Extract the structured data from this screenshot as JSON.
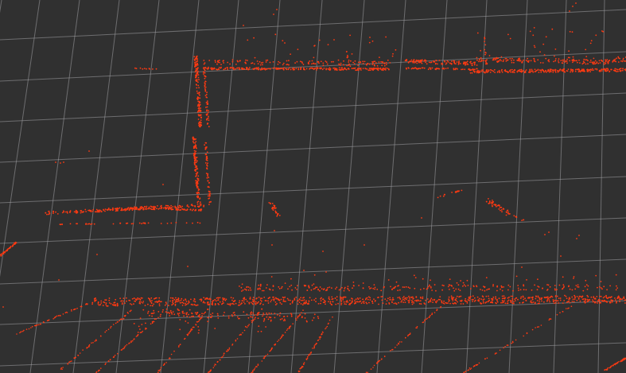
{
  "colors": {
    "background": "#303030",
    "grid": "#a0a0a4",
    "point": "#ff3a12"
  },
  "viewport": {
    "kind": "point-cloud-3d-view",
    "grid_visible": true,
    "overlay_text": []
  }
}
